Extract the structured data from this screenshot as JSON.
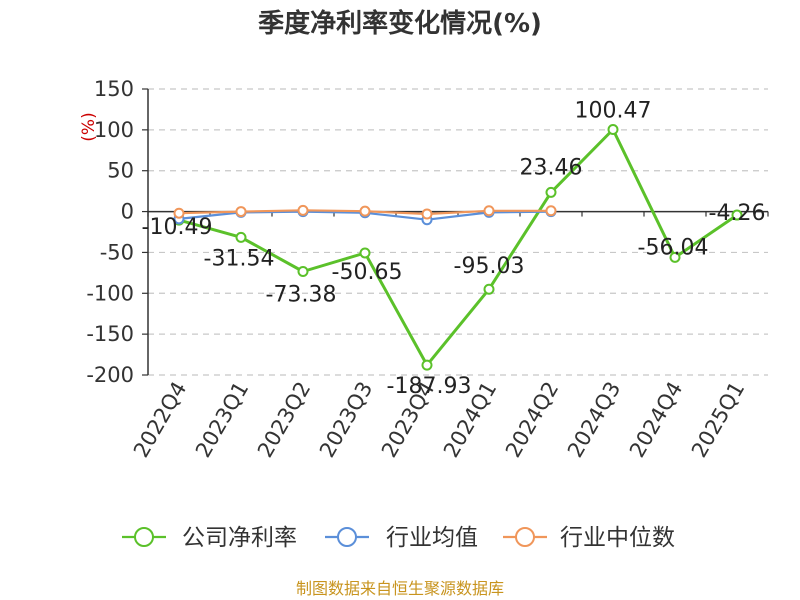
{
  "chart_data": {
    "type": "line",
    "title": "季度净利率变化情况(%)",
    "ylabel": "(%)",
    "xlabel": "",
    "categories": [
      "2022Q4",
      "2023Q1",
      "2023Q2",
      "2023Q3",
      "2023Q4",
      "2024Q1",
      "2024Q2",
      "2024Q3",
      "2024Q4",
      "2025Q1"
    ],
    "ylim": [
      -200,
      150
    ],
    "yticks": [
      150,
      100,
      50,
      0,
      -50,
      -100,
      -150,
      -200
    ],
    "grid": true,
    "legend_position": "bottom-center",
    "series": [
      {
        "name": "公司净利率",
        "color": "#5bc12a",
        "values": [
          -10.49,
          -31.54,
          -73.38,
          -50.65,
          -187.93,
          -95.03,
          23.46,
          100.47,
          -56.04,
          -4.26
        ],
        "labels": [
          "-10.49",
          "-31.54",
          "-73.38",
          "-50.65",
          "-187.93",
          "-95.03",
          "23.46",
          "100.47",
          "-56.04",
          "-4.26"
        ]
      },
      {
        "name": "行业均值",
        "color": "#5b8fd9",
        "values": [
          -9,
          -1,
          0,
          -1.5,
          -10,
          -1,
          0,
          null,
          null,
          null
        ]
      },
      {
        "name": "行业中位数",
        "color": "#f0965a",
        "values": [
          -2,
          0,
          1.5,
          0.5,
          -3,
          1,
          1,
          null,
          null,
          null
        ]
      }
    ]
  },
  "source": "制图数据来自恒生聚源数据库"
}
